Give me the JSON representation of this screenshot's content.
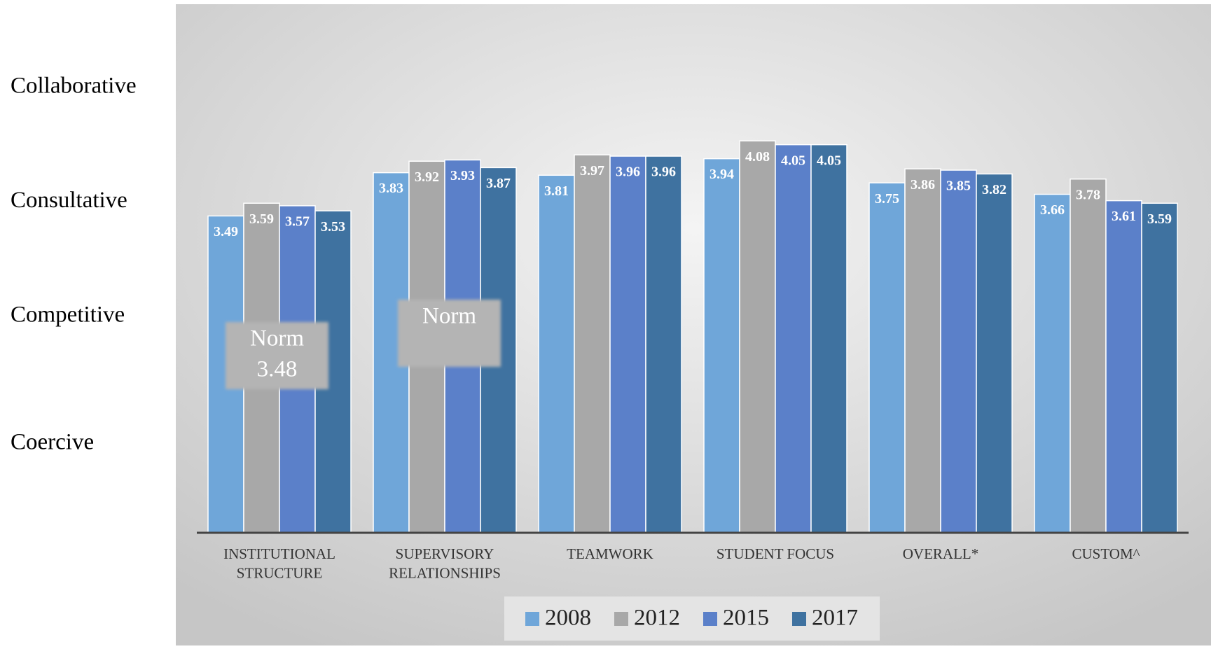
{
  "chart_data": {
    "type": "bar",
    "categories": [
      "INSTITUTIONAL\nSTRUCTURE",
      "SUPERVISORY\nRELATIONSHIPS",
      "TEAMWORK",
      "STUDENT FOCUS",
      "OVERALL*",
      "CUSTOM^"
    ],
    "series": [
      {
        "name": "2008",
        "color": "#6fa6d9",
        "values": [
          3.49,
          3.83,
          3.81,
          3.94,
          3.75,
          3.66
        ]
      },
      {
        "name": "2012",
        "color": "#a8a8a8",
        "values": [
          3.59,
          3.92,
          3.97,
          4.08,
          3.86,
          3.78
        ]
      },
      {
        "name": "2015",
        "color": "#5b80c9",
        "values": [
          3.57,
          3.93,
          3.96,
          4.05,
          3.85,
          3.61
        ]
      },
      {
        "name": "2017",
        "color": "#3f72a0",
        "values": [
          3.53,
          3.87,
          3.96,
          4.05,
          3.82,
          3.59
        ]
      }
    ],
    "ylim": [
      1,
      5
    ],
    "yticks": [
      {
        "value": 1.7,
        "label": "Coercive"
      },
      {
        "value": 2.7,
        "label": "Competitive"
      },
      {
        "value": 3.6,
        "label": "Consultative"
      },
      {
        "value": 4.5,
        "label": "Collaborative"
      }
    ],
    "annotations": [
      {
        "text": "Norm",
        "value": 3.48
      },
      {
        "text": "Norm"
      }
    ],
    "legend": "bottom"
  }
}
